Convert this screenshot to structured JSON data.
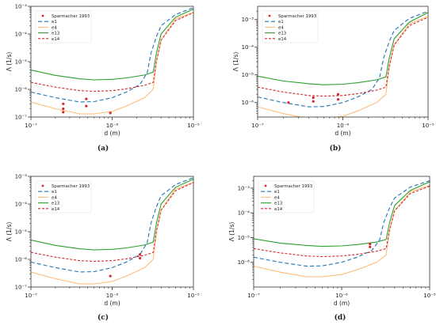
{
  "shared": {
    "xlabel": "d (m)",
    "ylabel": "Λ (1/s)",
    "x_ticks": [
      {
        "value": 1e-07,
        "label": "10⁻⁷"
      },
      {
        "value": 1e-06,
        "label": "10⁻⁶"
      },
      {
        "value": 1e-05,
        "label": "10⁻⁵"
      }
    ],
    "legend_items": [
      {
        "key": "points",
        "label": "Sparmacher 1993",
        "color": "#d62728"
      },
      {
        "key": "e1",
        "label": "e1",
        "color": "#1f77b4",
        "dash": "5,3"
      },
      {
        "key": "e4",
        "label": "e4",
        "color": "#ffbb78",
        "dash": ""
      },
      {
        "key": "e13",
        "label": "e13",
        "color": "#2ca02c",
        "dash": ""
      },
      {
        "key": "e14",
        "label": "e14",
        "color": "#d62728",
        "dash": "3,2"
      }
    ]
  },
  "panels": [
    {
      "caption": "(a)"
    },
    {
      "caption": "(b)"
    },
    {
      "caption": "(c)"
    },
    {
      "caption": "(d)"
    }
  ],
  "chart_data": [
    {
      "type": "line",
      "xscale": "log",
      "yscale": "log",
      "xlim": [
        1e-07,
        1e-05
      ],
      "ylim": [
        1e-07,
        0.001
      ],
      "xlabel": "d (m)",
      "ylabel": "Λ (1/s)",
      "y_ticks": [
        {
          "value": 1e-07,
          "label": "10⁻⁷"
        },
        {
          "value": 1e-06,
          "label": "10⁻⁶"
        },
        {
          "value": 1e-05,
          "label": "10⁻⁵"
        },
        {
          "value": 0.0001,
          "label": "10⁻⁴"
        },
        {
          "value": 0.001,
          "label": "10⁻³"
        }
      ],
      "legend_position": "top-left",
      "series": [
        {
          "name": "e1",
          "color": "#1f77b4",
          "dash": "5,3",
          "x": [
            1e-07,
            2e-07,
            4e-07,
            6e-07,
            1e-06,
            1.5e-06,
            2.2e-06,
            2.7e-06,
            3e-06,
            3.5e-06,
            4e-06,
            6e-06,
            1e-05
          ],
          "y": [
            8e-07,
            5e-07,
            3.5e-07,
            3.6e-07,
            5e-07,
            8e-07,
            1.5e-06,
            4e-06,
            2e-05,
            8e-05,
            0.0002,
            0.0005,
            0.0009
          ]
        },
        {
          "name": "e4",
          "color": "#ffbb78",
          "dash": "",
          "x": [
            1e-07,
            2e-07,
            4e-07,
            6e-07,
            1e-06,
            1.5e-06,
            2.5e-06,
            3.2e-06,
            3.5e-06,
            4e-06,
            6e-06,
            1e-05
          ],
          "y": [
            3.5e-07,
            2e-07,
            1.3e-07,
            1.3e-07,
            1.6e-07,
            2.5e-07,
            5e-07,
            1e-06,
            1e-05,
            6e-05,
            0.00035,
            0.0006
          ]
        },
        {
          "name": "e13",
          "color": "#2ca02c",
          "dash": "",
          "x": [
            1e-07,
            2e-07,
            4e-07,
            6e-07,
            1e-06,
            1.5e-06,
            2.5e-06,
            3.2e-06,
            3.5e-06,
            4e-06,
            6e-06,
            1e-05
          ],
          "y": [
            5e-06,
            3.2e-06,
            2.4e-06,
            2.2e-06,
            2.3e-06,
            2.6e-06,
            3.3e-06,
            4.2e-06,
            2e-05,
            0.0001,
            0.0004,
            0.0008
          ]
        },
        {
          "name": "e14",
          "color": "#d62728",
          "dash": "3,2",
          "x": [
            1e-07,
            2e-07,
            4e-07,
            6e-07,
            1e-06,
            1.5e-06,
            2.5e-06,
            3.2e-06,
            3.5e-06,
            4e-06,
            6e-06,
            1e-05
          ],
          "y": [
            1.8e-06,
            1.2e-06,
            9e-07,
            8.5e-07,
            9e-07,
            1.05e-06,
            1.4e-06,
            1.8e-06,
            1e-05,
            6e-05,
            0.0003,
            0.0006
          ]
        },
        {
          "name": "Sparmacher 1993",
          "color": "#d62728",
          "type": "scatter",
          "x": [
            2.5e-07,
            2.5e-07,
            2.5e-07,
            4.8e-07,
            4.8e-07,
            9.5e-07
          ],
          "y": [
            3e-07,
            2e-07,
            1.5e-07,
            4.5e-07,
            2.5e-07,
            1.4e-07
          ]
        }
      ]
    },
    {
      "type": "line",
      "xscale": "log",
      "yscale": "log",
      "xlim": [
        1e-07,
        1e-05
      ],
      "ylim": [
        3e-07,
        0.003
      ],
      "xlabel": "d (m)",
      "ylabel": "Λ (1/s)",
      "y_ticks": [
        {
          "value": 1e-06,
          "label": "10⁻⁶"
        },
        {
          "value": 1e-05,
          "label": "10⁻⁵"
        },
        {
          "value": 0.0001,
          "label": "10⁻⁴"
        },
        {
          "value": 0.001,
          "label": "10⁻³"
        }
      ],
      "legend_position": "top-left",
      "series": [
        {
          "name": "e1",
          "color": "#1f77b4",
          "dash": "5,3",
          "x": [
            1e-07,
            2e-07,
            4e-07,
            6e-07,
            1e-06,
            1.5e-06,
            2.2e-06,
            2.7e-06,
            3e-06,
            3.5e-06,
            4e-06,
            6e-06,
            1e-05
          ],
          "y": [
            1.6e-06,
            1e-06,
            7e-07,
            7.2e-07,
            1e-06,
            1.6e-06,
            3e-06,
            8e-06,
            4e-05,
            0.00016,
            0.0004,
            0.0011,
            0.002
          ]
        },
        {
          "name": "e4",
          "color": "#ffbb78",
          "dash": "",
          "x": [
            1e-07,
            2e-07,
            4e-07,
            6e-07,
            1e-06,
            1.5e-06,
            2.5e-06,
            3.2e-06,
            3.5e-06,
            4e-06,
            6e-06,
            1e-05
          ],
          "y": [
            7e-07,
            4e-07,
            2.6e-07,
            2.6e-07,
            3.2e-07,
            5e-07,
            1e-06,
            2e-06,
            2e-05,
            0.00012,
            0.0007,
            0.0013
          ]
        },
        {
          "name": "e13",
          "color": "#2ca02c",
          "dash": "",
          "x": [
            1e-07,
            2e-07,
            4e-07,
            6e-07,
            1e-06,
            1.5e-06,
            2.5e-06,
            3.2e-06,
            3.5e-06,
            4e-06,
            6e-06,
            1e-05
          ],
          "y": [
            9e-06,
            6e-06,
            4.8e-06,
            4.4e-06,
            4.6e-06,
            5.2e-06,
            6.6e-06,
            8.4e-06,
            4e-05,
            0.0002,
            0.0008,
            0.0018
          ]
        },
        {
          "name": "e14",
          "color": "#d62728",
          "dash": "3,2",
          "x": [
            1e-07,
            2e-07,
            4e-07,
            6e-07,
            1e-06,
            1.5e-06,
            2.5e-06,
            3.2e-06,
            3.5e-06,
            4e-06,
            6e-06,
            1e-05
          ],
          "y": [
            3.6e-06,
            2.4e-06,
            1.8e-06,
            1.7e-06,
            1.8e-06,
            2.1e-06,
            2.8e-06,
            3.6e-06,
            2e-05,
            0.00012,
            0.0006,
            0.0012
          ]
        },
        {
          "name": "Sparmacher 1993",
          "color": "#d62728",
          "type": "scatter",
          "x": [
            2.3e-07,
            4.5e-07,
            4.5e-07,
            8.8e-07,
            8.8e-07
          ],
          "y": [
            1e-06,
            1.5e-06,
            1.1e-06,
            2e-06,
            1.3e-06
          ]
        }
      ]
    },
    {
      "type": "line",
      "xscale": "log",
      "yscale": "log",
      "xlim": [
        1e-07,
        1e-05
      ],
      "ylim": [
        1e-07,
        0.001
      ],
      "xlabel": "d (m)",
      "ylabel": "Λ (1/s)",
      "y_ticks": [
        {
          "value": 1e-07,
          "label": "10⁻⁷"
        },
        {
          "value": 1e-06,
          "label": "10⁻⁶"
        },
        {
          "value": 1e-05,
          "label": "10⁻⁵"
        },
        {
          "value": 0.0001,
          "label": "10⁻⁴"
        },
        {
          "value": 0.001,
          "label": "10⁻³"
        }
      ],
      "legend_position": "top-left",
      "series": [
        {
          "name": "e1",
          "color": "#1f77b4",
          "dash": "5,3",
          "x": [
            1e-07,
            2e-07,
            4e-07,
            6e-07,
            1e-06,
            1.5e-06,
            2.2e-06,
            2.7e-06,
            3e-06,
            3.5e-06,
            4e-06,
            6e-06,
            1e-05
          ],
          "y": [
            8e-07,
            5e-07,
            3.5e-07,
            3.6e-07,
            5e-07,
            8e-07,
            1.5e-06,
            4e-06,
            2e-05,
            8e-05,
            0.0002,
            0.0005,
            0.0009
          ]
        },
        {
          "name": "e4",
          "color": "#ffbb78",
          "dash": "",
          "x": [
            1e-07,
            2e-07,
            4e-07,
            6e-07,
            1e-06,
            1.5e-06,
            2.5e-06,
            3.2e-06,
            3.5e-06,
            4e-06,
            6e-06,
            1e-05
          ],
          "y": [
            3.5e-07,
            2e-07,
            1.3e-07,
            1.3e-07,
            1.6e-07,
            2.5e-07,
            5e-07,
            1e-06,
            1e-05,
            6e-05,
            0.00035,
            0.0006
          ]
        },
        {
          "name": "e13",
          "color": "#2ca02c",
          "dash": "",
          "x": [
            1e-07,
            2e-07,
            4e-07,
            6e-07,
            1e-06,
            1.5e-06,
            2.5e-06,
            3.2e-06,
            3.5e-06,
            4e-06,
            6e-06,
            1e-05
          ],
          "y": [
            5e-06,
            3.2e-06,
            2.4e-06,
            2.2e-06,
            2.3e-06,
            2.6e-06,
            3.3e-06,
            4.2e-06,
            2e-05,
            0.0001,
            0.0004,
            0.0008
          ]
        },
        {
          "name": "e14",
          "color": "#d62728",
          "dash": "3,2",
          "x": [
            1e-07,
            2e-07,
            4e-07,
            6e-07,
            1e-06,
            1.5e-06,
            2.5e-06,
            3.2e-06,
            3.5e-06,
            4e-06,
            6e-06,
            1e-05
          ],
          "y": [
            1.8e-06,
            1.2e-06,
            9e-07,
            8.5e-07,
            9e-07,
            1.05e-06,
            1.4e-06,
            1.8e-06,
            1e-05,
            6e-05,
            0.0003,
            0.0006
          ]
        },
        {
          "name": "Sparmacher 1993",
          "color": "#d62728",
          "type": "scatter",
          "x": [
            9.5e-07,
            2.2e-06,
            2.2e-06
          ],
          "y": [
            2.5e-07,
            1.5e-06,
            1.1e-06
          ]
        }
      ]
    },
    {
      "type": "line",
      "xscale": "log",
      "yscale": "log",
      "xlim": [
        1e-07,
        1e-05
      ],
      "ylim": [
        1e-07,
        0.003
      ],
      "xlabel": "d (m)",
      "ylabel": "Λ (1/s)",
      "y_ticks": [
        {
          "value": 1e-06,
          "label": "10⁻⁶"
        },
        {
          "value": 1e-05,
          "label": "10⁻⁵"
        },
        {
          "value": 0.0001,
          "label": "10⁻⁴"
        },
        {
          "value": 0.001,
          "label": "10⁻³"
        }
      ],
      "legend_position": "top-left",
      "series": [
        {
          "name": "e1",
          "color": "#1f77b4",
          "dash": "5,3",
          "x": [
            1e-07,
            2e-07,
            4e-07,
            6e-07,
            1e-06,
            1.5e-06,
            2.2e-06,
            2.7e-06,
            3e-06,
            3.5e-06,
            4e-06,
            6e-06,
            1e-05
          ],
          "y": [
            1.6e-06,
            1e-06,
            7e-07,
            7.2e-07,
            1e-06,
            1.6e-06,
            3e-06,
            8e-06,
            4e-05,
            0.00016,
            0.0004,
            0.0011,
            0.002
          ]
        },
        {
          "name": "e4",
          "color": "#ffbb78",
          "dash": "",
          "x": [
            1e-07,
            2e-07,
            4e-07,
            6e-07,
            1e-06,
            1.5e-06,
            2.5e-06,
            3.2e-06,
            3.5e-06,
            4e-06,
            6e-06,
            1e-05
          ],
          "y": [
            7e-07,
            4e-07,
            2.6e-07,
            2.6e-07,
            3.2e-07,
            5e-07,
            1e-06,
            2e-06,
            2e-05,
            0.00012,
            0.0007,
            0.0013
          ]
        },
        {
          "name": "e13",
          "color": "#2ca02c",
          "dash": "",
          "x": [
            1e-07,
            2e-07,
            4e-07,
            6e-07,
            1e-06,
            1.5e-06,
            2.5e-06,
            3.2e-06,
            3.5e-06,
            4e-06,
            6e-06,
            1e-05
          ],
          "y": [
            9e-06,
            6e-06,
            4.8e-06,
            4.4e-06,
            4.6e-06,
            5.2e-06,
            6.6e-06,
            8.4e-06,
            4e-05,
            0.0002,
            0.0008,
            0.0018
          ]
        },
        {
          "name": "e14",
          "color": "#d62728",
          "dash": "3,2",
          "x": [
            1e-07,
            2e-07,
            4e-07,
            6e-07,
            1e-06,
            1.5e-06,
            2.5e-06,
            3.2e-06,
            3.5e-06,
            4e-06,
            6e-06,
            1e-05
          ],
          "y": [
            3.6e-06,
            2.4e-06,
            1.8e-06,
            1.7e-06,
            1.8e-06,
            2.1e-06,
            2.8e-06,
            3.6e-06,
            2e-05,
            0.00012,
            0.0006,
            0.0012
          ]
        },
        {
          "name": "Sparmacher 1993",
          "color": "#d62728",
          "type": "scatter",
          "x": [
            2.1e-06,
            2.1e-06
          ],
          "y": [
            5.5e-06,
            4.2e-06
          ]
        }
      ]
    }
  ]
}
